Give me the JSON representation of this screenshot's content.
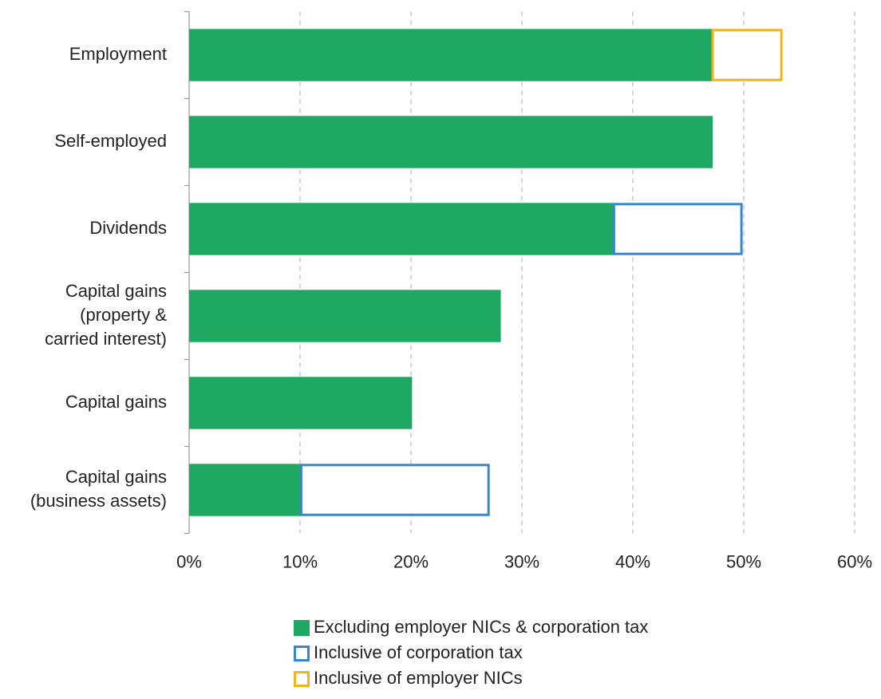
{
  "chart_data": {
    "type": "hbar_stacked",
    "categories": [
      "Employment",
      "Self-employed",
      "Dividends",
      "Capital gains\n(property &\ncarried interest)",
      "Capital gains",
      "Capital gains\n(business assets)"
    ],
    "series": [
      {
        "name": "Excluding employer NICs & corporation tax",
        "color": "#1fa862",
        "style": "filled",
        "values": [
          47.2,
          47.2,
          38.3,
          28.1,
          20.1,
          10.1
        ]
      },
      {
        "name": "Inclusive of corporation tax",
        "color": "#3a86c8",
        "style": "outline",
        "values": [
          null,
          null,
          11.6,
          null,
          null,
          17.0
        ]
      },
      {
        "name": "Inclusive of employer NICs",
        "color": "#f0b41c",
        "style": "outline",
        "values": [
          6.3,
          null,
          null,
          null,
          null,
          null
        ]
      }
    ],
    "xlim": [
      0,
      60
    ],
    "xticks": [
      {
        "value": 0,
        "label": "0%"
      },
      {
        "value": 10,
        "label": "10%"
      },
      {
        "value": 20,
        "label": "20%"
      },
      {
        "value": 30,
        "label": "30%"
      },
      {
        "value": 40,
        "label": "40%"
      },
      {
        "value": 50,
        "label": "50%"
      },
      {
        "value": 60,
        "label": "60%"
      }
    ],
    "grid": true,
    "legend": "bottom"
  }
}
